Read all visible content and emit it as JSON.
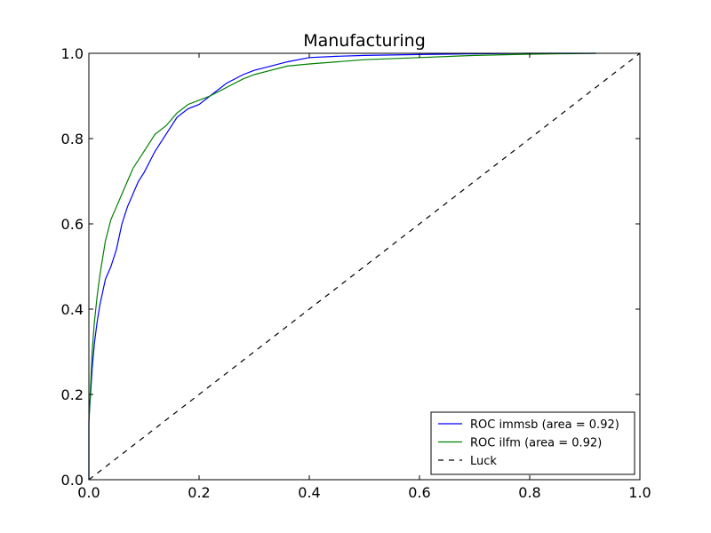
{
  "chart_data": {
    "type": "line",
    "title": "Manufacturing",
    "xlabel": "",
    "ylabel": "",
    "xlim": [
      0.0,
      1.0
    ],
    "ylim": [
      0.0,
      1.0
    ],
    "x_ticks": [
      0.0,
      0.2,
      0.4,
      0.6,
      0.8,
      1.0
    ],
    "y_ticks": [
      0.0,
      0.2,
      0.4,
      0.6,
      0.8,
      1.0
    ],
    "x_tick_labels": [
      "0.0",
      "0.2",
      "0.4",
      "0.6",
      "0.8",
      "1.0"
    ],
    "y_tick_labels": [
      "0.0",
      "0.2",
      "0.4",
      "0.6",
      "0.8",
      "1.0"
    ],
    "grid": false,
    "legend_position": "bottom-right",
    "series": [
      {
        "name": "ROC immsb (area = 0.92)",
        "color": "#0000ff",
        "style": "solid",
        "x": [
          0.0,
          0.0,
          0.003,
          0.006,
          0.01,
          0.015,
          0.02,
          0.025,
          0.03,
          0.04,
          0.05,
          0.06,
          0.065,
          0.07,
          0.08,
          0.09,
          0.1,
          0.12,
          0.14,
          0.16,
          0.18,
          0.2,
          0.22,
          0.25,
          0.28,
          0.3,
          0.33,
          0.36,
          0.4,
          0.45,
          0.5,
          0.6,
          0.7,
          0.8,
          0.92
        ],
        "y": [
          0.0,
          0.14,
          0.2,
          0.26,
          0.32,
          0.37,
          0.41,
          0.44,
          0.47,
          0.5,
          0.54,
          0.6,
          0.62,
          0.64,
          0.67,
          0.7,
          0.72,
          0.77,
          0.81,
          0.85,
          0.87,
          0.88,
          0.9,
          0.93,
          0.95,
          0.96,
          0.97,
          0.98,
          0.99,
          0.993,
          0.995,
          0.997,
          0.999,
          1.0,
          1.0
        ]
      },
      {
        "name": "ROC ilfm (area = 0.92)",
        "color": "#008000",
        "style": "solid",
        "x": [
          0.0,
          0.0,
          0.003,
          0.006,
          0.01,
          0.015,
          0.02,
          0.025,
          0.03,
          0.04,
          0.05,
          0.06,
          0.07,
          0.08,
          0.1,
          0.12,
          0.14,
          0.16,
          0.18,
          0.2,
          0.22,
          0.25,
          0.28,
          0.3,
          0.33,
          0.36,
          0.4,
          0.45,
          0.5,
          0.6,
          0.7,
          0.8,
          0.92
        ],
        "y": [
          0.0,
          0.13,
          0.22,
          0.3,
          0.37,
          0.43,
          0.48,
          0.52,
          0.56,
          0.61,
          0.64,
          0.67,
          0.7,
          0.73,
          0.77,
          0.81,
          0.83,
          0.86,
          0.88,
          0.89,
          0.9,
          0.92,
          0.94,
          0.95,
          0.96,
          0.97,
          0.975,
          0.98,
          0.985,
          0.99,
          0.995,
          0.998,
          1.0
        ]
      },
      {
        "name": "Luck",
        "color": "#000000",
        "style": "dashed",
        "x": [
          0.0,
          1.0
        ],
        "y": [
          0.0,
          1.0
        ]
      }
    ]
  }
}
